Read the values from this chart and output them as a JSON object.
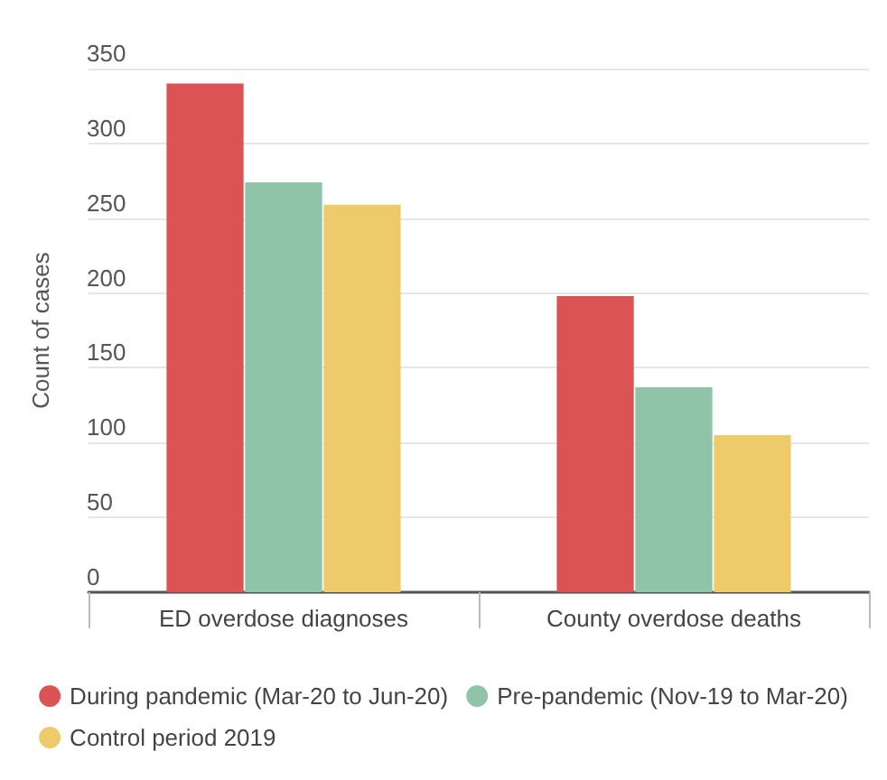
{
  "chart_data": {
    "type": "bar",
    "ylabel": "Count of cases",
    "categories": [
      "ED overdose diagnoses",
      "County overdose deaths"
    ],
    "series": [
      {
        "name": "During pandemic (Mar-20 to Jun-20)",
        "color": "#dc5356",
        "values": [
          340,
          198
        ]
      },
      {
        "name": "Pre-pandemic (Nov-19 to Mar-20)",
        "color": "#8fc4a8",
        "values": [
          274,
          137
        ]
      },
      {
        "name": "Control period 2019",
        "color": "#eecb6a",
        "values": [
          259,
          105
        ]
      }
    ],
    "ylim": [
      0,
      350
    ],
    "yticks": [
      0,
      50,
      100,
      150,
      200,
      250,
      300,
      350
    ],
    "grid": "y",
    "legend": "bottom"
  }
}
